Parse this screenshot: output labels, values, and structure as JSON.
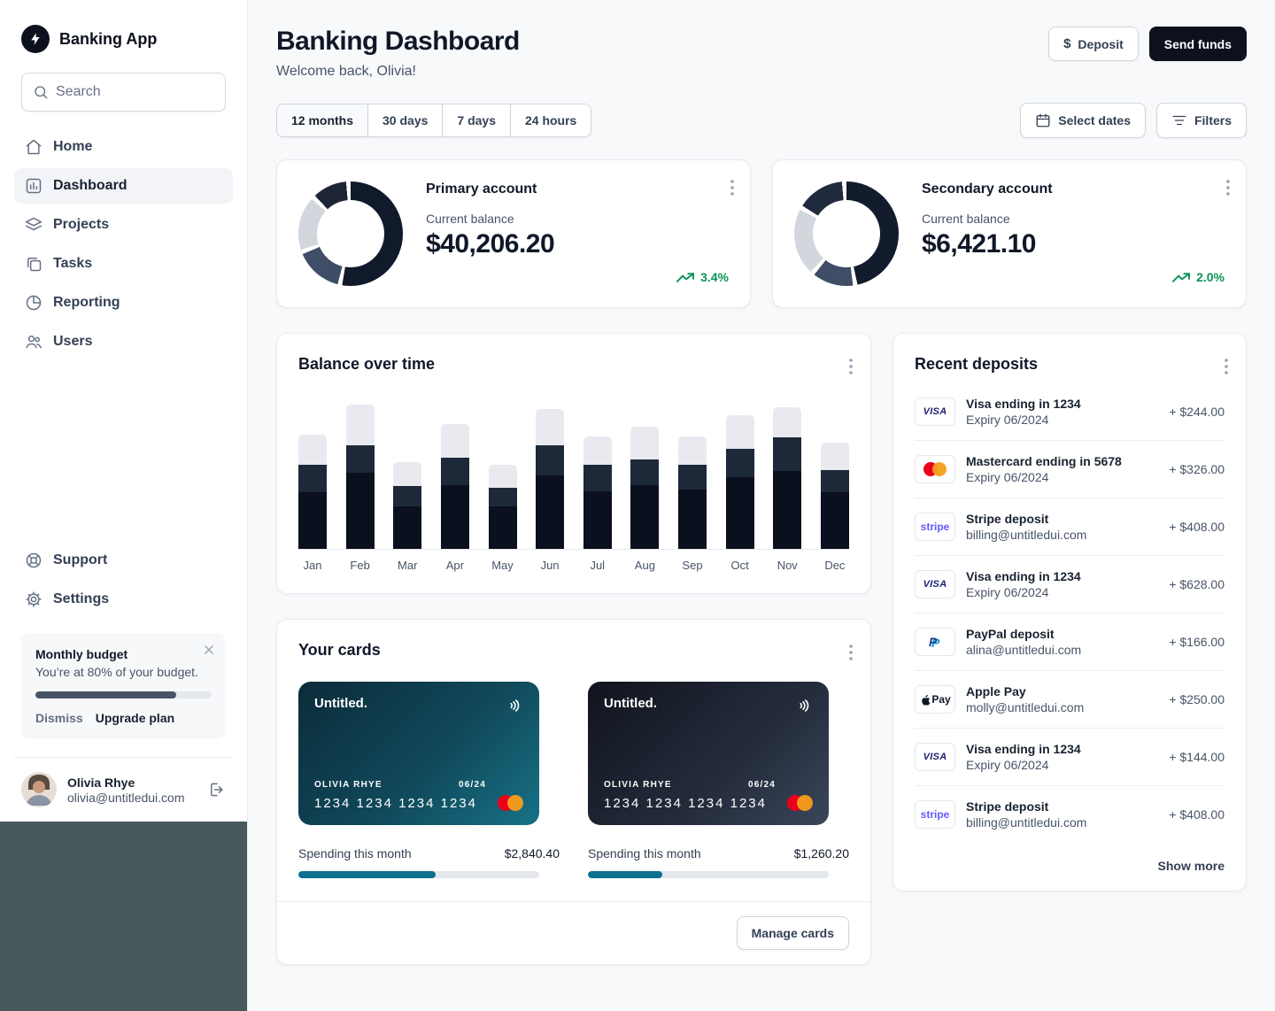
{
  "sidebar": {
    "app_name": "Banking App",
    "search_placeholder": "Search",
    "nav": [
      {
        "label": "Home"
      },
      {
        "label": "Dashboard"
      },
      {
        "label": "Projects"
      },
      {
        "label": "Tasks"
      },
      {
        "label": "Reporting"
      },
      {
        "label": "Users"
      }
    ],
    "secondary": [
      {
        "label": "Support"
      },
      {
        "label": "Settings"
      }
    ],
    "budget": {
      "title": "Monthly budget",
      "text": "You’re at 80% of your budget.",
      "percent": 80,
      "dismiss": "Dismiss",
      "upgrade": "Upgrade plan"
    },
    "user": {
      "name": "Olivia Rhye",
      "email": "olivia@untitledui.com"
    }
  },
  "header": {
    "title": "Banking Dashboard",
    "subtitle": "Welcome back, Olivia!",
    "deposit_label": "Deposit",
    "send_label": "Send funds"
  },
  "toolbar": {
    "ranges": [
      "12 months",
      "30 days",
      "7 days",
      "24 hours"
    ],
    "select_dates": "Select dates",
    "filters": "Filters"
  },
  "accounts": [
    {
      "name": "Primary account",
      "balance_label": "Current balance",
      "balance": "$40,206.20",
      "trend": "3.4%",
      "donut": {
        "segments": [
          {
            "color": "#111a2b",
            "pct": 54
          },
          {
            "color": "#3f4d66",
            "pct": 16
          },
          {
            "color": "#d2d7de",
            "pct": 18
          },
          {
            "color": "#1d2535",
            "pct": 12
          }
        ]
      }
    },
    {
      "name": "Secondary account",
      "balance_label": "Current balance",
      "balance": "$6,421.10",
      "trend": "2.0%",
      "donut": {
        "segments": [
          {
            "color": "#131c2d",
            "pct": 48
          },
          {
            "color": "#3f4d66",
            "pct": 14
          },
          {
            "color": "#d2d7de",
            "pct": 22
          },
          {
            "color": "#202a3d",
            "pct": 16
          }
        ]
      }
    }
  ],
  "chart_data": {
    "type": "bar",
    "title": "Balance over time",
    "categories": [
      "Jan",
      "Feb",
      "Mar",
      "Apr",
      "May",
      "Jun",
      "Jul",
      "Aug",
      "Sep",
      "Oct",
      "Nov",
      "Dec"
    ],
    "series": [
      {
        "name": "balance-base",
        "color": "#0b101e",
        "values": [
          37,
          50,
          28,
          42,
          28,
          48,
          38,
          42,
          39,
          47,
          51,
          37
        ]
      },
      {
        "name": "balance-mid",
        "color": "#1d2939",
        "values": [
          18,
          18,
          13,
          18,
          12,
          20,
          17,
          17,
          16,
          19,
          22,
          15
        ]
      },
      {
        "name": "balance-top",
        "color": "#e9eaef",
        "values": [
          20,
          27,
          16,
          22,
          15,
          24,
          19,
          21,
          19,
          22,
          20,
          18
        ]
      }
    ],
    "xlabel": "",
    "ylabel": "",
    "ylim": [
      0,
      100
    ],
    "grid": false,
    "legend": "none",
    "stacked": true
  },
  "cards": {
    "title": "Your cards",
    "manage_label": "Manage cards",
    "items": [
      {
        "brand": "Untitled.",
        "holder": "OLIVIA RHYE",
        "expiry": "06/24",
        "number": "1234 1234 1234 1234",
        "spending_label": "Spending this month",
        "spending_amount": "$2,840.40",
        "spending_percent": 57
      },
      {
        "brand": "Untitled.",
        "holder": "OLIVIA RHYE",
        "expiry": "06/24",
        "number": "1234 1234 1234 1234",
        "spending_label": "Spending this month",
        "spending_amount": "$1,260.20",
        "spending_percent": 31
      }
    ]
  },
  "deposits": {
    "title": "Recent deposits",
    "show_more": "Show more",
    "items": [
      {
        "brand": "visa",
        "brand_label": "VISA",
        "title": "Visa ending in 1234",
        "subtitle": "Expiry 06/2024",
        "amount": "+ $244.00"
      },
      {
        "brand": "mastercard",
        "brand_label": "",
        "title": "Mastercard ending in 5678",
        "subtitle": "Expiry 06/2024",
        "amount": "+ $326.00"
      },
      {
        "brand": "stripe",
        "brand_label": "stripe",
        "title": "Stripe deposit",
        "subtitle": "billing@untitledui.com",
        "amount": "+ $408.00"
      },
      {
        "brand": "visa",
        "brand_label": "VISA",
        "title": "Visa ending in 1234",
        "subtitle": "Expiry 06/2024",
        "amount": "+ $628.00"
      },
      {
        "brand": "paypal",
        "brand_label": "P",
        "title": "PayPal deposit",
        "subtitle": "alina@untitledui.com",
        "amount": "+ $166.00"
      },
      {
        "brand": "applepay",
        "brand_label": "Pay",
        "title": "Apple Pay",
        "subtitle": "molly@untitledui.com",
        "amount": "+ $250.00"
      },
      {
        "brand": "visa",
        "brand_label": "VISA",
        "title": "Visa ending in 1234",
        "subtitle": "Expiry 06/2024",
        "amount": "+ $144.00"
      },
      {
        "brand": "stripe",
        "brand_label": "stripe",
        "title": "Stripe deposit",
        "subtitle": "billing@untitledui.com",
        "amount": "+ $408.00"
      }
    ]
  },
  "colors": {
    "positive": "#079455",
    "progress_teal": "#0e7090",
    "budget_fill": "#475467",
    "dark_button": "#0c111d"
  }
}
